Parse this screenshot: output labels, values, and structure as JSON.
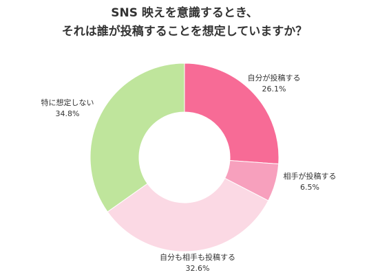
{
  "chart_data": {
    "type": "pie",
    "donut": true,
    "title": [
      "SNS 映えを意識するとき、",
      "それは誰が投稿することを想定していますか？"
    ],
    "slices": [
      {
        "label": "自分が投稿する",
        "value": 26.1,
        "value_label": "26.1%",
        "color": "#f76b96"
      },
      {
        "label": "相手が投稿する",
        "value": 6.5,
        "value_label": "6.5%",
        "color": "#f7a0bd"
      },
      {
        "label": "自分も相手も投稿する",
        "value": 32.6,
        "value_label": "32.6%",
        "color": "#fbd9e4"
      },
      {
        "label": "特に想定しない",
        "value": 34.8,
        "value_label": "34.8%",
        "color": "#bfe59c"
      }
    ],
    "start_angle": "12 o'clock",
    "direction": "clockwise",
    "legend": "none"
  }
}
